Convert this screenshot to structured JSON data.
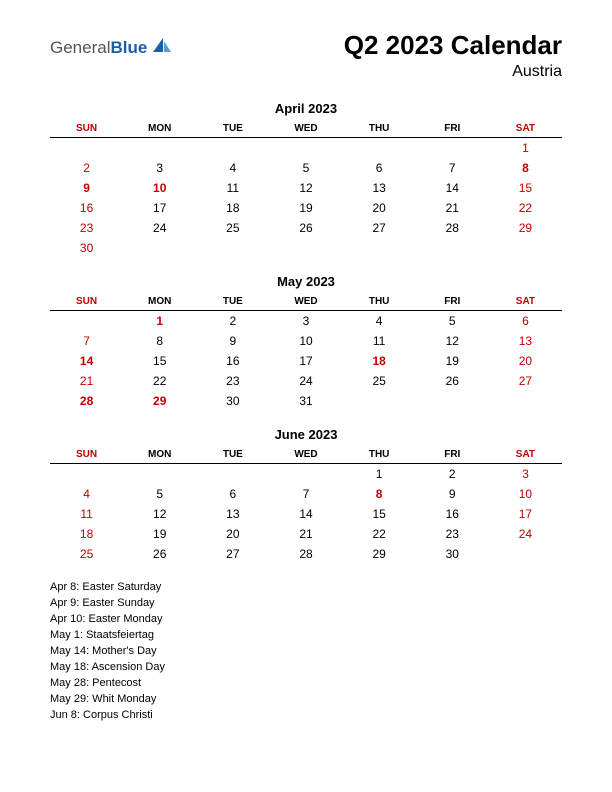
{
  "logo": {
    "part1": "General",
    "part2": "Blue"
  },
  "title": "Q2 2023 Calendar",
  "subtitle": "Austria",
  "colors": {
    "background": "#ffffff",
    "text": "#000000",
    "red": "#c00000",
    "logo_blue": "#1b5fa3",
    "logo_gray": "#555555",
    "border": "#000000"
  },
  "typography": {
    "title_fontsize": 26,
    "subtitle_fontsize": 16,
    "month_title_fontsize": 13,
    "header_fontsize": 10,
    "cell_fontsize": 12,
    "holiday_fontsize": 11
  },
  "day_headers": [
    "SUN",
    "MON",
    "TUE",
    "WED",
    "THU",
    "FRI",
    "SAT"
  ],
  "header_red_cols": [
    0,
    6
  ],
  "months": [
    {
      "title": "April 2023",
      "weeks": [
        [
          {
            "v": ""
          },
          {
            "v": ""
          },
          {
            "v": ""
          },
          {
            "v": ""
          },
          {
            "v": ""
          },
          {
            "v": ""
          },
          {
            "v": "1",
            "r": 1
          }
        ],
        [
          {
            "v": "2",
            "r": 1
          },
          {
            "v": "3"
          },
          {
            "v": "4"
          },
          {
            "v": "5"
          },
          {
            "v": "6"
          },
          {
            "v": "7"
          },
          {
            "v": "8",
            "r": 1,
            "b": 1
          }
        ],
        [
          {
            "v": "9",
            "r": 1,
            "b": 1
          },
          {
            "v": "10",
            "r": 1,
            "b": 1
          },
          {
            "v": "11"
          },
          {
            "v": "12"
          },
          {
            "v": "13"
          },
          {
            "v": "14"
          },
          {
            "v": "15",
            "r": 1
          }
        ],
        [
          {
            "v": "16",
            "r": 1
          },
          {
            "v": "17"
          },
          {
            "v": "18"
          },
          {
            "v": "19"
          },
          {
            "v": "20"
          },
          {
            "v": "21"
          },
          {
            "v": "22",
            "r": 1
          }
        ],
        [
          {
            "v": "23",
            "r": 1
          },
          {
            "v": "24"
          },
          {
            "v": "25"
          },
          {
            "v": "26"
          },
          {
            "v": "27"
          },
          {
            "v": "28"
          },
          {
            "v": "29",
            "r": 1
          }
        ],
        [
          {
            "v": "30",
            "r": 1
          },
          {
            "v": ""
          },
          {
            "v": ""
          },
          {
            "v": ""
          },
          {
            "v": ""
          },
          {
            "v": ""
          },
          {
            "v": ""
          }
        ]
      ]
    },
    {
      "title": "May 2023",
      "weeks": [
        [
          {
            "v": ""
          },
          {
            "v": "1",
            "r": 1,
            "b": 1
          },
          {
            "v": "2"
          },
          {
            "v": "3"
          },
          {
            "v": "4"
          },
          {
            "v": "5"
          },
          {
            "v": "6",
            "r": 1
          }
        ],
        [
          {
            "v": "7",
            "r": 1
          },
          {
            "v": "8"
          },
          {
            "v": "9"
          },
          {
            "v": "10"
          },
          {
            "v": "11"
          },
          {
            "v": "12"
          },
          {
            "v": "13",
            "r": 1
          }
        ],
        [
          {
            "v": "14",
            "r": 1,
            "b": 1
          },
          {
            "v": "15"
          },
          {
            "v": "16"
          },
          {
            "v": "17"
          },
          {
            "v": "18",
            "r": 1,
            "b": 1
          },
          {
            "v": "19"
          },
          {
            "v": "20",
            "r": 1
          }
        ],
        [
          {
            "v": "21",
            "r": 1
          },
          {
            "v": "22"
          },
          {
            "v": "23"
          },
          {
            "v": "24"
          },
          {
            "v": "25"
          },
          {
            "v": "26"
          },
          {
            "v": "27",
            "r": 1
          }
        ],
        [
          {
            "v": "28",
            "r": 1,
            "b": 1
          },
          {
            "v": "29",
            "r": 1,
            "b": 1
          },
          {
            "v": "30"
          },
          {
            "v": "31"
          },
          {
            "v": ""
          },
          {
            "v": ""
          },
          {
            "v": ""
          }
        ]
      ]
    },
    {
      "title": "June 2023",
      "weeks": [
        [
          {
            "v": ""
          },
          {
            "v": ""
          },
          {
            "v": ""
          },
          {
            "v": ""
          },
          {
            "v": "1"
          },
          {
            "v": "2"
          },
          {
            "v": "3",
            "r": 1
          }
        ],
        [
          {
            "v": "4",
            "r": 1
          },
          {
            "v": "5"
          },
          {
            "v": "6"
          },
          {
            "v": "7"
          },
          {
            "v": "8",
            "r": 1,
            "b": 1
          },
          {
            "v": "9"
          },
          {
            "v": "10",
            "r": 1
          }
        ],
        [
          {
            "v": "11",
            "r": 1
          },
          {
            "v": "12"
          },
          {
            "v": "13"
          },
          {
            "v": "14"
          },
          {
            "v": "15"
          },
          {
            "v": "16"
          },
          {
            "v": "17",
            "r": 1
          }
        ],
        [
          {
            "v": "18",
            "r": 1
          },
          {
            "v": "19"
          },
          {
            "v": "20"
          },
          {
            "v": "21"
          },
          {
            "v": "22"
          },
          {
            "v": "23"
          },
          {
            "v": "24",
            "r": 1
          }
        ],
        [
          {
            "v": "25",
            "r": 1
          },
          {
            "v": "26"
          },
          {
            "v": "27"
          },
          {
            "v": "28"
          },
          {
            "v": "29"
          },
          {
            "v": "30"
          },
          {
            "v": ""
          }
        ]
      ]
    }
  ],
  "holidays": [
    "Apr 8: Easter Saturday",
    "Apr 9: Easter Sunday",
    "Apr 10: Easter Monday",
    "May 1: Staatsfeiertag",
    "May 14: Mother's Day",
    "May 18: Ascension Day",
    "May 28: Pentecost",
    "May 29: Whit Monday",
    "Jun 8: Corpus Christi"
  ]
}
